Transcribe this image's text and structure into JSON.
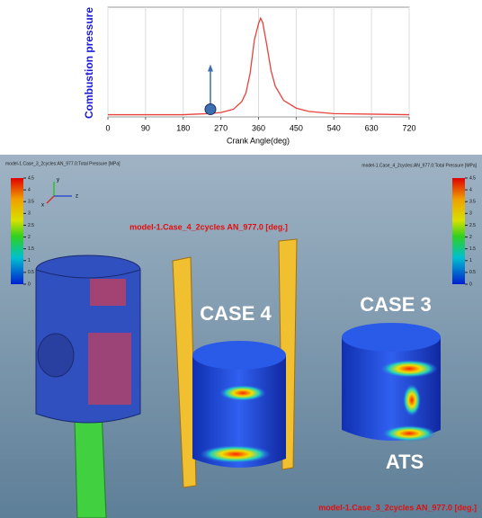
{
  "chart_data": {
    "type": "line",
    "ylabel": "Combustion pressure",
    "xlabel": "Crank Angle(deg)",
    "x": [
      0,
      30,
      60,
      90,
      120,
      150,
      180,
      210,
      240,
      270,
      300,
      320,
      330,
      340,
      350,
      360,
      365,
      370,
      380,
      390,
      400,
      420,
      450,
      480,
      540,
      630,
      720
    ],
    "series": [
      {
        "name": "Combustion pressure",
        "color": "#e8413c",
        "values": [
          2,
          2,
          2,
          2,
          2,
          2,
          2,
          2.5,
          3,
          4,
          7,
          14,
          22,
          40,
          70,
          85,
          90,
          86,
          65,
          42,
          28,
          15,
          8,
          5,
          3,
          2.5,
          2
        ]
      }
    ],
    "xlim": [
      0,
      720
    ],
    "xticks": [
      0,
      90,
      180,
      270,
      360,
      450,
      540,
      630,
      720
    ],
    "ylim": [
      0,
      100
    ],
    "grid": true,
    "marker": {
      "x": 245,
      "y": 7,
      "color": "#3d6fb0"
    }
  },
  "render": {
    "left_header": "model-1.Case_3_2cycles:AN_977.0:Total Pressure [MPa]",
    "right_header": "model-1.Case_4_2cycles:AN_977.0:Total Pressure [MPa]",
    "colorbar": {
      "lim": [
        0,
        4.5
      ],
      "ticks": [
        0,
        0.5,
        1,
        1.5,
        2,
        2.5,
        3,
        3.5,
        4,
        4.5
      ]
    },
    "triad": [
      "y",
      "z",
      "x"
    ],
    "top_label": "model-1.Case_4_2cycles  AN_977.0 [deg.]",
    "bottom_label": "model-1.Case_3_2cycles AN_977.0 [deg.]",
    "case4": "CASE 4",
    "case3": "CASE 3",
    "ats": "ATS"
  }
}
